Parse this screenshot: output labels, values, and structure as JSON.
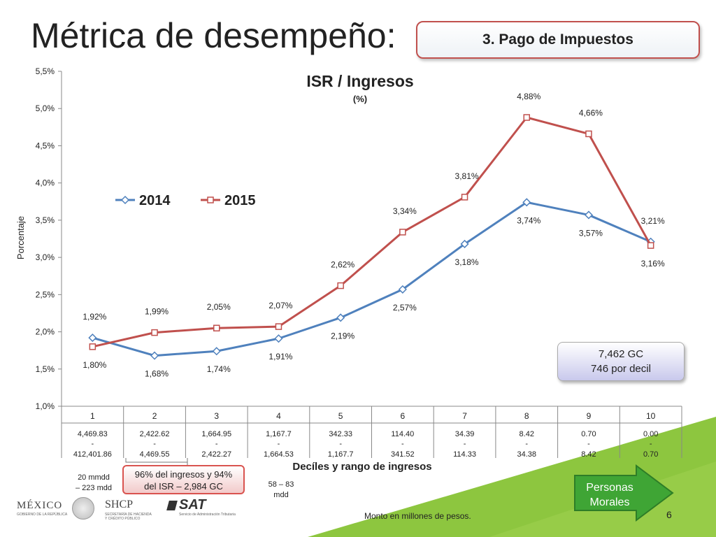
{
  "slide": {
    "title": "Métrica de desempeño:",
    "section_label": "3. Pago de Impuestos",
    "page_number": "6",
    "footer_note": "Monto en millones de pesos.",
    "note_box": {
      "line1": "7,462 GC",
      "line2": "746 por decil"
    },
    "top_share_box": {
      "line1": "96% del ingresos y 94%",
      "line2": "del ISR – 2,984 GC"
    },
    "left_range_note": {
      "line1": "20 mmdd",
      "line2": "– 223 mdd"
    },
    "mid_range_note": {
      "line1": "58 – 83",
      "line2": "mdd"
    },
    "nav_button": {
      "line1": "Personas",
      "line2": "Morales",
      "color": "#3fa535"
    },
    "logos": {
      "mexico": "MÉXICO",
      "mexico_sub": "GOBIERNO DE LA REPÚBLICA",
      "shcp": "SHCP",
      "shcp_sub": "SECRETARÍA DE HACIENDA Y CRÉDITO PÚBLICO",
      "sat": "SAT",
      "sat_sub": "Servicio de Administración Tributaria"
    },
    "accent_colors": {
      "green": "#8dc63f",
      "dark_green": "#3fa535"
    }
  },
  "chart_data": {
    "type": "line",
    "title": "ISR / Ingresos",
    "subtitle": "(%)",
    "xlabel": "Decíles y rango de ingresos",
    "ylabel": "Porcentaje",
    "ylim": [
      1.0,
      5.5
    ],
    "yticks": [
      "1,0%",
      "1,5%",
      "2,0%",
      "2,5%",
      "3,0%",
      "3,5%",
      "4,0%",
      "4,5%",
      "5,0%",
      "5,5%"
    ],
    "categories": [
      "1",
      "2",
      "3",
      "4",
      "5",
      "6",
      "7",
      "8",
      "9",
      "10"
    ],
    "ranges": [
      {
        "hi": "4,469.83",
        "sep": "-",
        "lo": "412,401.86"
      },
      {
        "hi": "2,422.62",
        "sep": "-",
        "lo": "4,469.55"
      },
      {
        "hi": "1,664.95",
        "sep": "-",
        "lo": "2,422.27"
      },
      {
        "hi": "1,167.7",
        "sep": "-",
        "lo": "1,664.53"
      },
      {
        "hi": "342.33",
        "sep": "-",
        "lo": "1,167.7"
      },
      {
        "hi": "114.40",
        "sep": "-",
        "lo": "341.52"
      },
      {
        "hi": "34.39",
        "sep": "-",
        "lo": "114.33"
      },
      {
        "hi": "8.42",
        "sep": "-",
        "lo": "34.38"
      },
      {
        "hi": "0.70",
        "sep": "-",
        "lo": "8.42"
      },
      {
        "hi": "0.00",
        "sep": "-",
        "lo": "0.70"
      }
    ],
    "legend_position": "top-left",
    "grid": false,
    "series": [
      {
        "name": "2014",
        "color": "#4f81bd",
        "marker": "diamond",
        "values": [
          1.92,
          1.68,
          1.74,
          1.91,
          2.19,
          2.57,
          3.18,
          3.74,
          3.57,
          3.21
        ],
        "labels": [
          "1,92%",
          "1,68%",
          "1,74%",
          "1,91%",
          "2,19%",
          "2,57%",
          "3,18%",
          "3,74%",
          "3,57%",
          "3,21%"
        ]
      },
      {
        "name": "2015",
        "color": "#c0504d",
        "marker": "square",
        "values": [
          1.8,
          1.99,
          2.05,
          2.07,
          2.62,
          3.34,
          3.81,
          4.88,
          4.66,
          3.16
        ],
        "labels": [
          "1,80%",
          "1,99%",
          "2,05%",
          "2,07%",
          "2,62%",
          "3,34%",
          "3,81%",
          "4,88%",
          "4,66%",
          "3,16%"
        ]
      }
    ]
  }
}
